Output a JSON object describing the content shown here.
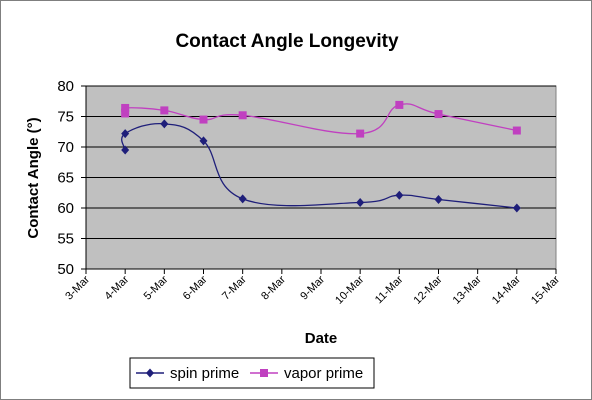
{
  "chart_data": {
    "type": "line",
    "title": "Contact Angle Longevity",
    "xlabel": "Date",
    "ylabel": "Contact Angle (°)",
    "ylim": [
      50,
      80
    ],
    "y_ticks": [
      50,
      55,
      60,
      65,
      70,
      75,
      80
    ],
    "x_ticks": [
      "3-Mar",
      "4-Mar",
      "5-Mar",
      "6-Mar",
      "7-Mar",
      "8-Mar",
      "9-Mar",
      "10-Mar",
      "11-Mar",
      "12-Mar",
      "13-Mar",
      "14-Mar",
      "15-Mar"
    ],
    "grid": true,
    "plot_background": "#c0c0c0",
    "legend_position": "bottom",
    "series": [
      {
        "name": "spin prime",
        "color": "#1f1f7a",
        "marker": "diamond",
        "points": [
          {
            "x": "4-Mar",
            "y": 69.5
          },
          {
            "x": "4-Mar",
            "y": 72.2
          },
          {
            "x": "5-Mar",
            "y": 73.8
          },
          {
            "x": "6-Mar",
            "y": 71.0
          },
          {
            "x": "7-Mar",
            "y": 61.5
          },
          {
            "x": "10-Mar",
            "y": 60.9
          },
          {
            "x": "11-Mar",
            "y": 62.1
          },
          {
            "x": "12-Mar",
            "y": 61.4
          },
          {
            "x": "14-Mar",
            "y": 60.0
          }
        ]
      },
      {
        "name": "vapor prime",
        "color": "#c040c0",
        "marker": "square",
        "points": [
          {
            "x": "4-Mar",
            "y": 75.5
          },
          {
            "x": "4-Mar",
            "y": 76.4
          },
          {
            "x": "5-Mar",
            "y": 76.0
          },
          {
            "x": "6-Mar",
            "y": 74.5
          },
          {
            "x": "7-Mar",
            "y": 75.2
          },
          {
            "x": "10-Mar",
            "y": 72.2
          },
          {
            "x": "11-Mar",
            "y": 76.9
          },
          {
            "x": "12-Mar",
            "y": 75.4
          },
          {
            "x": "14-Mar",
            "y": 72.7
          }
        ]
      }
    ]
  }
}
